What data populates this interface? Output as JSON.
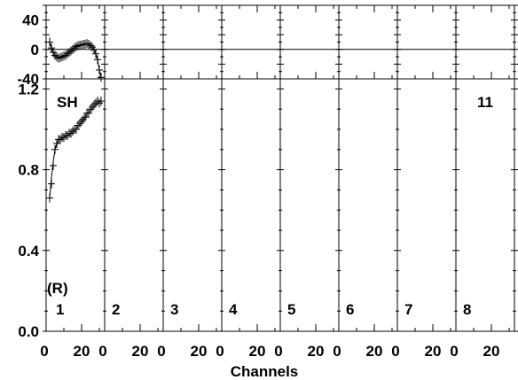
{
  "chart_data": {
    "type": "scatter",
    "xlabel": "Channels",
    "panels": [
      {
        "index": "1",
        "label": "1",
        "xticks": [
          "0",
          "20"
        ]
      },
      {
        "index": "2",
        "label": "2",
        "xticks": [
          "0",
          "20"
        ]
      },
      {
        "index": "3",
        "label": "3",
        "xticks": [
          "0",
          "20"
        ]
      },
      {
        "index": "4",
        "label": "4",
        "xticks": [
          "0",
          "20"
        ]
      },
      {
        "index": "5",
        "label": "5",
        "xticks": [
          "0",
          "20"
        ]
      },
      {
        "index": "6",
        "label": "6",
        "xticks": [
          "0",
          "20"
        ]
      },
      {
        "index": "7",
        "label": "7",
        "xticks": [
          "0",
          "20"
        ]
      },
      {
        "index": "8",
        "label": "8",
        "xticks": [
          "0",
          "20"
        ]
      }
    ],
    "panel_xlim": [
      0,
      33
    ],
    "residual_axis": {
      "ylim": [
        -40,
        60
      ],
      "ticks": [
        "40",
        "0",
        "-40"
      ],
      "tick_values": [
        40,
        0,
        -40
      ]
    },
    "main_axis": {
      "ylim": [
        0,
        1.25
      ],
      "ticks": [
        "1.2",
        "0.8",
        "0.4",
        "0.0"
      ],
      "tick_values": [
        1.2,
        0.8,
        0.4,
        0.0
      ]
    },
    "annotations": {
      "sh": "SH",
      "r": "(R)",
      "top_right": "11"
    },
    "series": [
      {
        "panel": 1,
        "x": [
          2,
          3,
          4,
          5,
          6,
          7,
          8,
          9,
          10,
          11,
          12,
          13,
          14,
          15,
          16,
          17,
          18,
          19,
          20,
          21,
          22,
          23,
          24,
          25,
          26,
          27,
          28,
          29,
          30,
          31
        ],
        "y": [
          0.66,
          0.73,
          0.82,
          0.9,
          0.93,
          0.95,
          0.95,
          0.96,
          0.96,
          0.97,
          0.97,
          0.98,
          0.98,
          0.99,
          1.0,
          1.0,
          1.02,
          1.03,
          1.04,
          1.05,
          1.06,
          1.08,
          1.08,
          1.1,
          1.11,
          1.12,
          1.13,
          1.14,
          1.13,
          1.14
        ],
        "fit_y": [
          0.66,
          0.76,
          0.84,
          0.9,
          0.93,
          0.945,
          0.95,
          0.955,
          0.96,
          0.965,
          0.97,
          0.975,
          0.98,
          0.99,
          0.995,
          1.005,
          1.015,
          1.025,
          1.035,
          1.05,
          1.06,
          1.075,
          1.085,
          1.095,
          1.105,
          1.115,
          1.125,
          1.13,
          1.135,
          1.14
        ],
        "residuals": [
          10,
          2,
          -4,
          -8,
          -10,
          -12,
          -11,
          -10,
          -9,
          -8,
          -6,
          -4,
          -2,
          0,
          2,
          4,
          5,
          6,
          6,
          7,
          7,
          8,
          7,
          5,
          3,
          0,
          -6,
          -14,
          -28,
          -38
        ]
      }
    ]
  }
}
